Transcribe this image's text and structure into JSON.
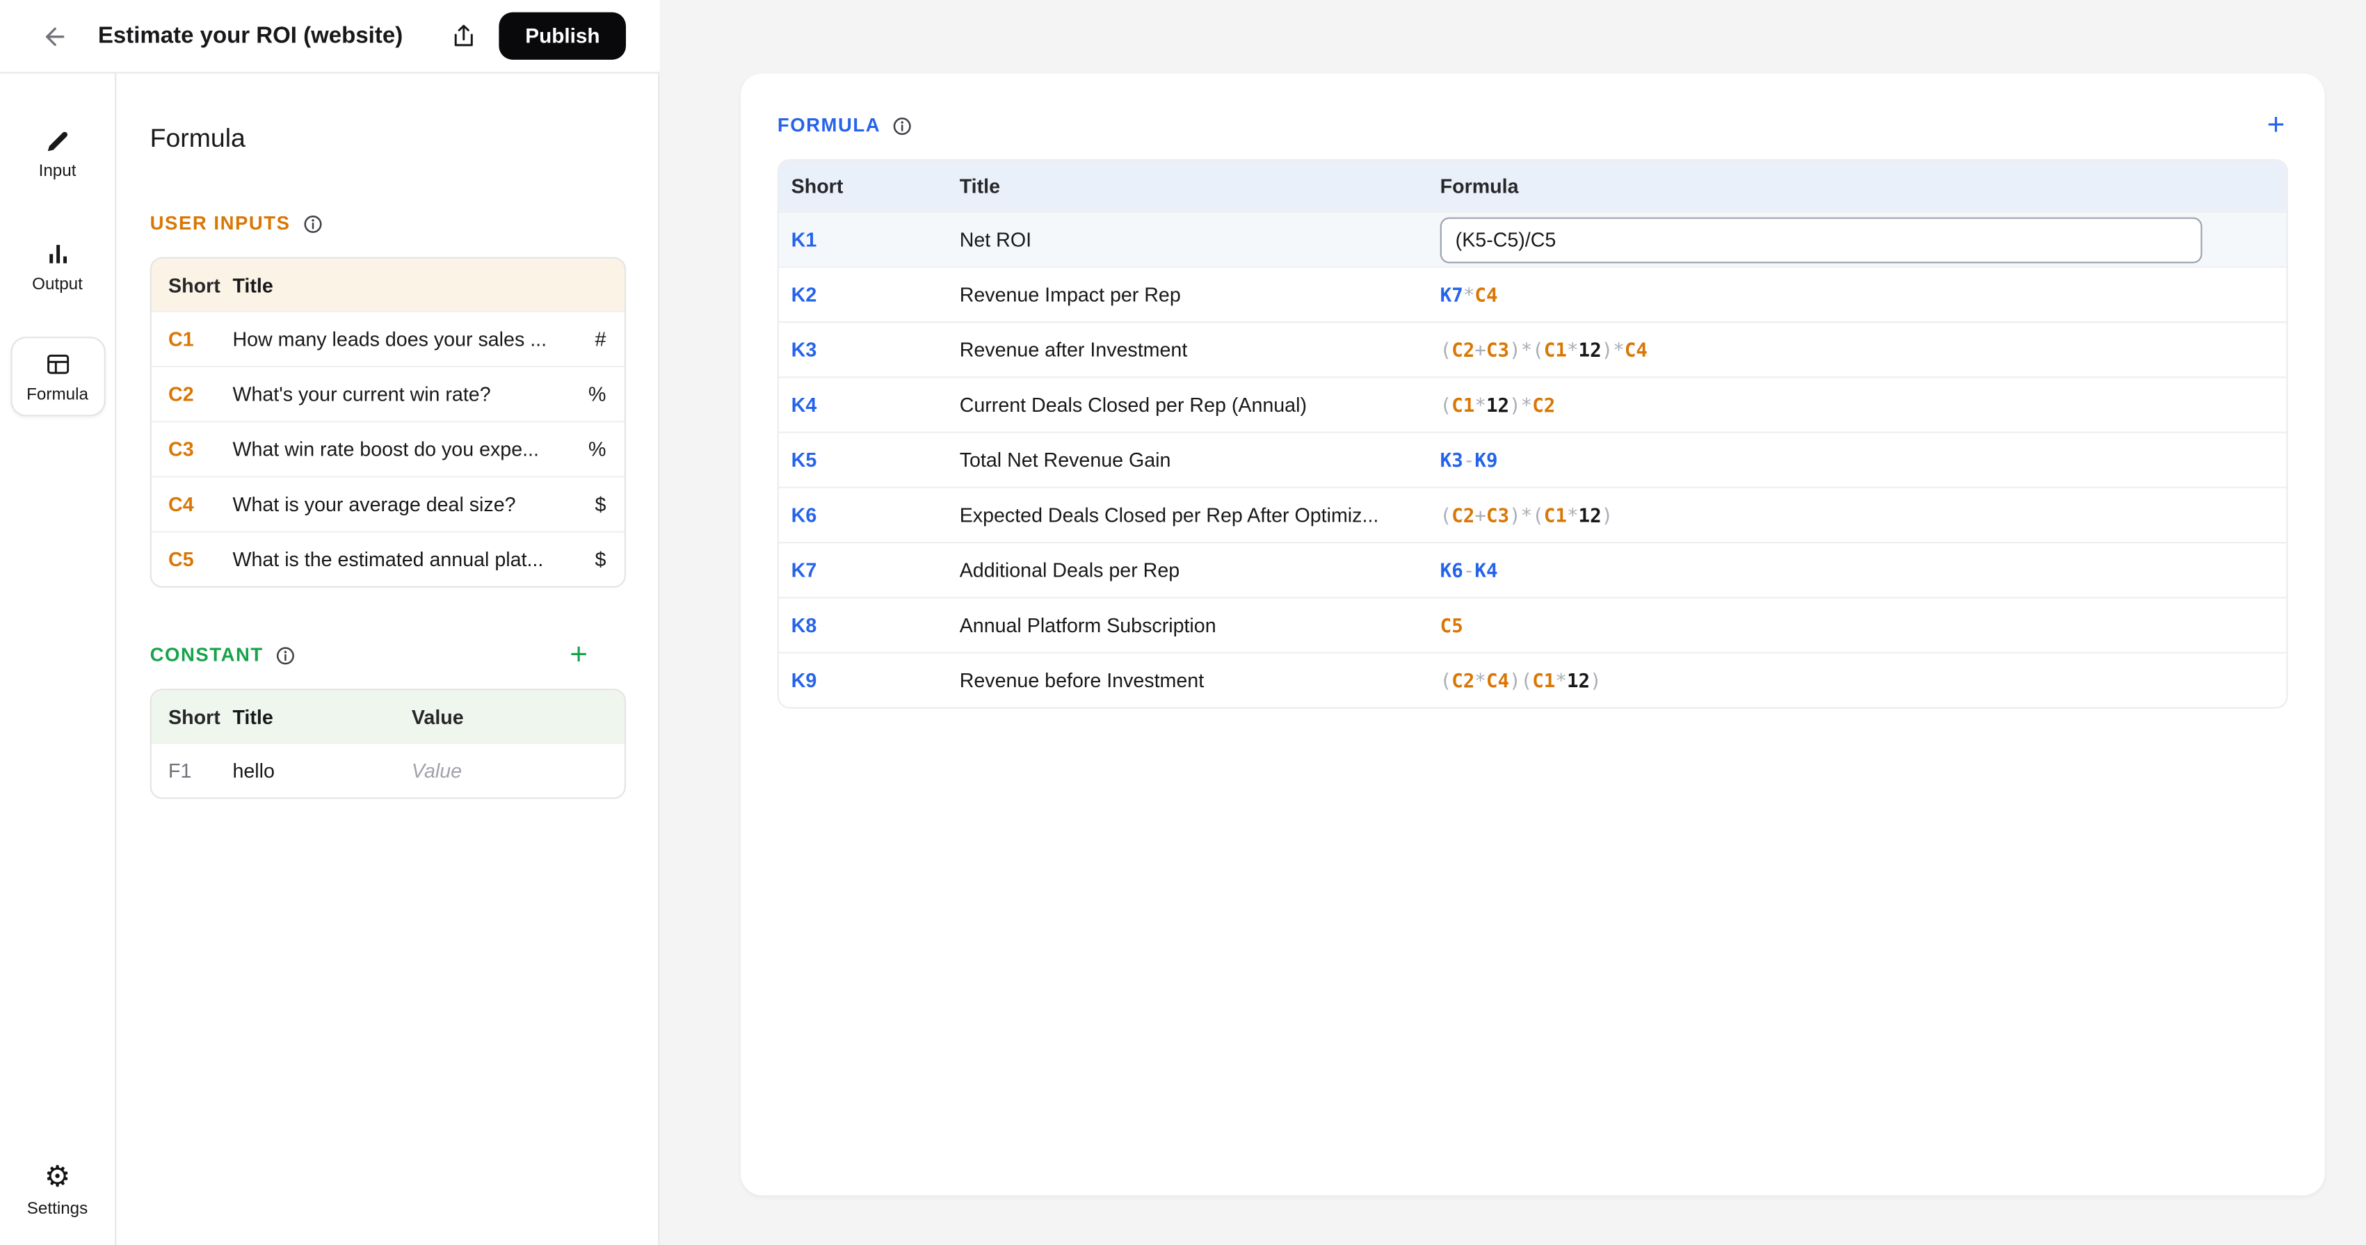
{
  "topbar": {
    "title": "Estimate your ROI (website)",
    "publish_label": "Publish"
  },
  "sidebar": {
    "items": [
      {
        "id": "input",
        "label": "Input",
        "icon": "pencil-icon",
        "active": false
      },
      {
        "id": "output",
        "label": "Output",
        "icon": "bar-chart-icon",
        "active": false
      },
      {
        "id": "formula",
        "label": "Formula",
        "icon": "table-icon",
        "active": true
      },
      {
        "id": "settings",
        "label": "Settings",
        "icon": "gear-icon",
        "active": false
      }
    ]
  },
  "panel": {
    "title": "Formula",
    "user_inputs": {
      "heading": "USER INPUTS",
      "columns": {
        "short": "Short",
        "title": "Title"
      },
      "rows": [
        {
          "short": "C1",
          "title": "How many leads does your sales ...",
          "unit": "#"
        },
        {
          "short": "C2",
          "title": "What's your current win rate?",
          "unit": "%"
        },
        {
          "short": "C3",
          "title": "What win rate boost do you expe...",
          "unit": "%"
        },
        {
          "short": "C4",
          "title": "What is your average deal size?",
          "unit": "$"
        },
        {
          "short": "C5",
          "title": "What is the estimated annual plat...",
          "unit": "$"
        }
      ]
    },
    "constant": {
      "heading": "CONSTANT",
      "add_label": "+",
      "columns": {
        "short": "Short",
        "title": "Title",
        "value": "Value"
      },
      "rows": [
        {
          "short": "F1",
          "title": "hello",
          "value_placeholder": "Value"
        }
      ]
    }
  },
  "main": {
    "heading": "FORMULA",
    "add_label": "+",
    "columns": {
      "short": "Short",
      "title": "Title",
      "formula": "Formula"
    },
    "rows": [
      {
        "short": "K1",
        "title": "Net ROI",
        "editing": true,
        "formula_input_value": "(K5-C5)/C5",
        "formula": []
      },
      {
        "short": "K2",
        "title": "Revenue Impact per Rep",
        "formula": [
          {
            "t": "K7",
            "c": "k"
          },
          {
            "t": "*",
            "c": "op"
          },
          {
            "t": "C4",
            "c": "c"
          }
        ]
      },
      {
        "short": "K3",
        "title": "Revenue after Investment",
        "formula": [
          {
            "t": "(",
            "c": "op"
          },
          {
            "t": "C2",
            "c": "c"
          },
          {
            "t": "+",
            "c": "op"
          },
          {
            "t": "C3",
            "c": "c"
          },
          {
            "t": ")",
            "c": "op"
          },
          {
            "t": "*",
            "c": "op"
          },
          {
            "t": "(",
            "c": "op"
          },
          {
            "t": "C1",
            "c": "c"
          },
          {
            "t": "*",
            "c": "op"
          },
          {
            "t": "12",
            "c": "num"
          },
          {
            "t": ")",
            "c": "op"
          },
          {
            "t": "*",
            "c": "op"
          },
          {
            "t": "C4",
            "c": "c"
          }
        ]
      },
      {
        "short": "K4",
        "title": "Current Deals Closed per Rep (Annual)",
        "formula": [
          {
            "t": "(",
            "c": "op"
          },
          {
            "t": "C1",
            "c": "c"
          },
          {
            "t": "*",
            "c": "op"
          },
          {
            "t": "12",
            "c": "num"
          },
          {
            "t": ")",
            "c": "op"
          },
          {
            "t": "*",
            "c": "op"
          },
          {
            "t": "C2",
            "c": "c"
          }
        ]
      },
      {
        "short": "K5",
        "title": "Total Net Revenue Gain",
        "formula": [
          {
            "t": "K3",
            "c": "k"
          },
          {
            "t": "-",
            "c": "op"
          },
          {
            "t": "K9",
            "c": "k"
          }
        ]
      },
      {
        "short": "K6",
        "title": "Expected Deals Closed per Rep After Optimiz...",
        "formula": [
          {
            "t": "(",
            "c": "op"
          },
          {
            "t": "C2",
            "c": "c"
          },
          {
            "t": "+",
            "c": "op"
          },
          {
            "t": "C3",
            "c": "c"
          },
          {
            "t": ")",
            "c": "op"
          },
          {
            "t": "*",
            "c": "op"
          },
          {
            "t": "(",
            "c": "op"
          },
          {
            "t": "C1",
            "c": "c"
          },
          {
            "t": "*",
            "c": "op"
          },
          {
            "t": "12",
            "c": "num"
          },
          {
            "t": ")",
            "c": "op"
          }
        ]
      },
      {
        "short": "K7",
        "title": "Additional Deals per Rep",
        "formula": [
          {
            "t": "K6",
            "c": "k"
          },
          {
            "t": "-",
            "c": "op"
          },
          {
            "t": "K4",
            "c": "k"
          }
        ]
      },
      {
        "short": "K8",
        "title": "Annual Platform Subscription",
        "formula": [
          {
            "t": "C5",
            "c": "c"
          }
        ]
      },
      {
        "short": "K9",
        "title": "Revenue before Investment",
        "formula": [
          {
            "t": "(",
            "c": "op"
          },
          {
            "t": "C2",
            "c": "c"
          },
          {
            "t": "*",
            "c": "op"
          },
          {
            "t": "C4",
            "c": "c"
          },
          {
            "t": ")",
            "c": "op"
          },
          {
            "t": "(",
            "c": "op"
          },
          {
            "t": "C1",
            "c": "c"
          },
          {
            "t": "*",
            "c": "op"
          },
          {
            "t": "12",
            "c": "num"
          },
          {
            "t": ")",
            "c": "op"
          }
        ]
      }
    ]
  },
  "colors": {
    "kref_blue": "#2563EB",
    "cref_orange": "#D97706",
    "constant_green": "#16A34A",
    "operator_gray": "#A9AEB6",
    "main_background": "#F4F4F5",
    "publish_black": "#09090b"
  }
}
